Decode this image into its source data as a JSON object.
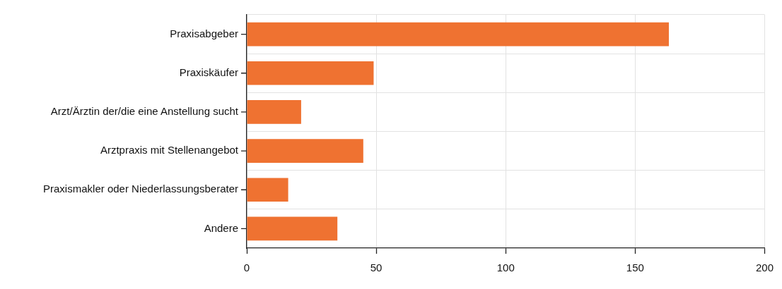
{
  "chart_data": {
    "type": "bar",
    "orientation": "horizontal",
    "categories": [
      "Praxisabgeber",
      "Praxiskäufer",
      "Arzt/Ärztin der/die eine Anstellung sucht",
      "Arztpraxis mit Stellenangebot",
      "Praxismakler oder Niederlassungsberater",
      "Andere"
    ],
    "values": [
      163,
      49,
      21,
      45,
      16,
      35
    ],
    "color": "#ef7231",
    "xlim": [
      0,
      200
    ],
    "xticks": [
      0,
      50,
      100,
      150,
      200
    ],
    "grid": true
  }
}
